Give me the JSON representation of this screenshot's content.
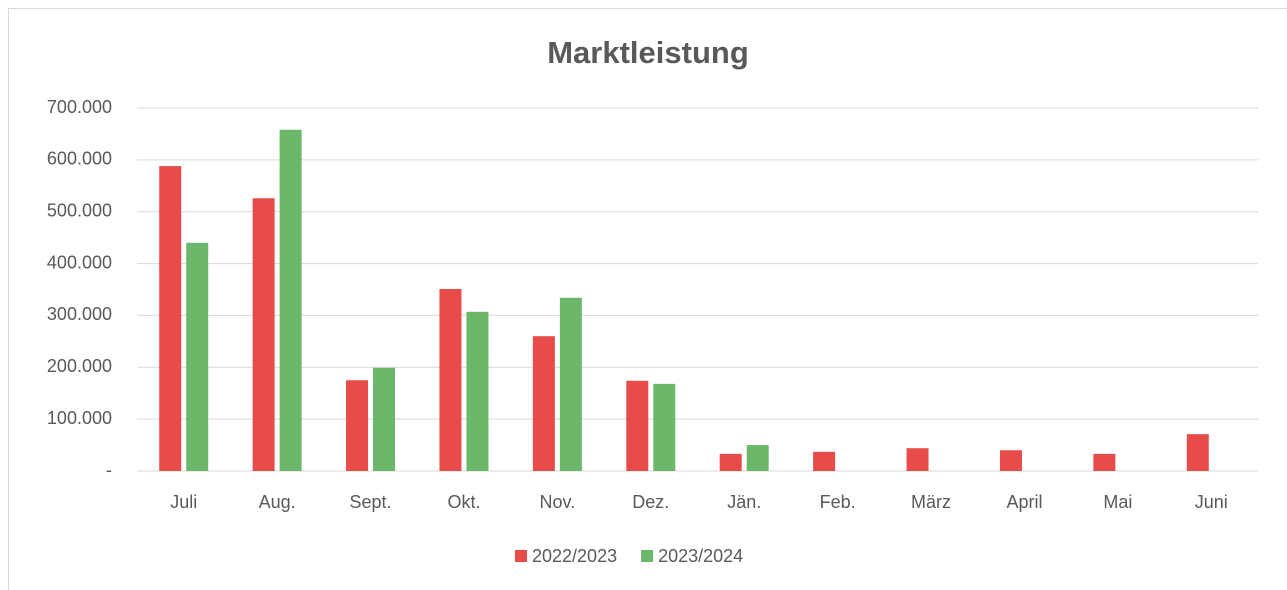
{
  "chart_data": {
    "type": "bar",
    "title": "Marktleistung",
    "categories": [
      "Juli",
      "Aug.",
      "Sept.",
      "Okt.",
      "Nov.",
      "Dez.",
      "Jän.",
      "Feb.",
      "März",
      "April",
      "Mai",
      "Juni"
    ],
    "series": [
      {
        "name": "2022/2023",
        "color": "#e84c4a",
        "values": [
          588000,
          526000,
          175000,
          351000,
          260000,
          174000,
          33000,
          37000,
          44000,
          40000,
          33000,
          71000
        ]
      },
      {
        "name": "2023/2024",
        "color": "#6bb86b",
        "values": [
          440000,
          658000,
          199000,
          307000,
          334000,
          168000,
          50000,
          null,
          null,
          null,
          null,
          null
        ]
      }
    ],
    "ylim": [
      0,
      700000
    ],
    "yticks": [
      {
        "value": 0,
        "label": "-"
      },
      {
        "value": 100000,
        "label": "100.000"
      },
      {
        "value": 200000,
        "label": "200.000"
      },
      {
        "value": 300000,
        "label": "300.000"
      },
      {
        "value": 400000,
        "label": "400.000"
      },
      {
        "value": 500000,
        "label": "500.000"
      },
      {
        "value": 600000,
        "label": "600.000"
      },
      {
        "value": 700000,
        "label": "700.000"
      }
    ],
    "grid": true,
    "legend": "bottom"
  }
}
